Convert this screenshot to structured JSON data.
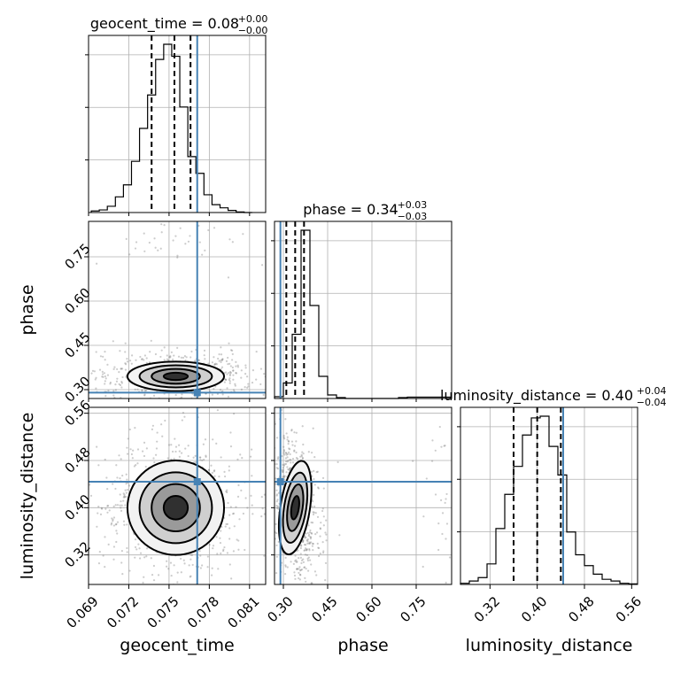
{
  "chart_data": {
    "type": "corner",
    "parameters": [
      "geocent_time",
      "phase",
      "luminosity_distance"
    ],
    "titles": [
      {
        "param": "geocent_time",
        "text": "geocent_time = 0.08",
        "sup": "+0.00",
        "sub": "−0.00"
      },
      {
        "param": "phase",
        "text": "phase = 0.34",
        "sup": "+0.03",
        "sub": "−0.03"
      },
      {
        "param": "luminosity_distance",
        "text": "luminosity_distance = 0.40",
        "sup": "+0.04",
        "sub": "−0.04"
      }
    ],
    "axis_labels": {
      "x": [
        "geocent_time",
        "phase",
        "luminosity_distance"
      ],
      "y": [
        "phase",
        "luminosity_distance"
      ]
    },
    "ranges": {
      "geocent_time": [
        0.069,
        0.0822
      ],
      "phase": [
        0.27,
        0.87
      ],
      "luminosity_distance": [
        0.27,
        0.57
      ]
    },
    "ticks": {
      "geocent_time": {
        "values": [
          0.069,
          0.072,
          0.075,
          0.078,
          0.081
        ],
        "labels": [
          "0.069",
          "0.072",
          "0.075",
          "0.078",
          "0.081"
        ]
      },
      "phase": {
        "values": [
          0.3,
          0.45,
          0.6,
          0.75
        ],
        "labels": [
          "0.30",
          "0.45",
          "0.60",
          "0.75"
        ]
      },
      "luminosity_distance": {
        "values": [
          0.32,
          0.4,
          0.48,
          0.56
        ],
        "labels": [
          "0.32",
          "0.40",
          "0.48",
          "0.56"
        ]
      }
    },
    "truths": {
      "geocent_time": 0.0771,
      "phase": 0.29,
      "luminosity_distance": 0.444
    },
    "quantiles": {
      "geocent_time": [
        0.0737,
        0.0754,
        0.0766
      ],
      "phase": [
        0.31,
        0.34,
        0.37
      ],
      "luminosity_distance": [
        0.36,
        0.4,
        0.44
      ]
    },
    "histograms": {
      "geocent_time": {
        "bin_start": 0.0692,
        "bin_width": 0.0006,
        "values": [
          0.3,
          0.5,
          1.2,
          3.0,
          5.3,
          9.8,
          16.1,
          22.5,
          29.3,
          32.2,
          29.9,
          20.2,
          10.7,
          7.5,
          3.4,
          1.5,
          0.9,
          0.4,
          0.1,
          0
        ]
      },
      "phase": {
        "bin_start": 0.27,
        "bin_width": 0.03,
        "values": [
          0.4,
          3.5,
          14.5,
          38.0,
          21.0,
          5.0,
          0.8,
          0.2,
          0,
          0,
          0,
          0,
          0,
          0,
          0.2,
          0.3,
          0.3,
          0.3,
          0.3,
          0.3
        ]
      },
      "luminosity_distance": {
        "bin_start": 0.27,
        "bin_width": 0.015,
        "values": [
          0.2,
          0.6,
          1.2,
          3.6,
          9.8,
          15.8,
          20.7,
          26.2,
          29.2,
          29.5,
          24.2,
          19.2,
          9.2,
          5.2,
          3.3,
          1.8,
          0.9,
          0.6,
          0.2,
          0.1
        ]
      }
    },
    "pairs": [
      {
        "x": "geocent_time",
        "y": "phase",
        "center": [
          0.0755,
          0.345
        ],
        "sigma": [
          0.0018,
          0.025
        ],
        "corr": 0,
        "mode2": {
          "center": [
            0.0755,
            0.8
          ],
          "sigma": [
            0.0018,
            0.025
          ],
          "fraction": 0.012
        }
      },
      {
        "x": "geocent_time",
        "y": "luminosity_distance",
        "center": [
          0.0755,
          0.4
        ],
        "sigma": [
          0.0018,
          0.04
        ],
        "corr": 0
      },
      {
        "x": "phase",
        "y": "luminosity_distance",
        "center": [
          0.34,
          0.4
        ],
        "sigma": [
          0.025,
          0.04
        ],
        "corr": -0.25,
        "mode2": {
          "center": [
            0.83,
            0.4
          ],
          "sigma": [
            0.025,
            0.04
          ],
          "fraction": 0.012
        }
      }
    ],
    "grid": true,
    "colors": {
      "truth": "#4682b4",
      "samples": "#000000"
    }
  }
}
